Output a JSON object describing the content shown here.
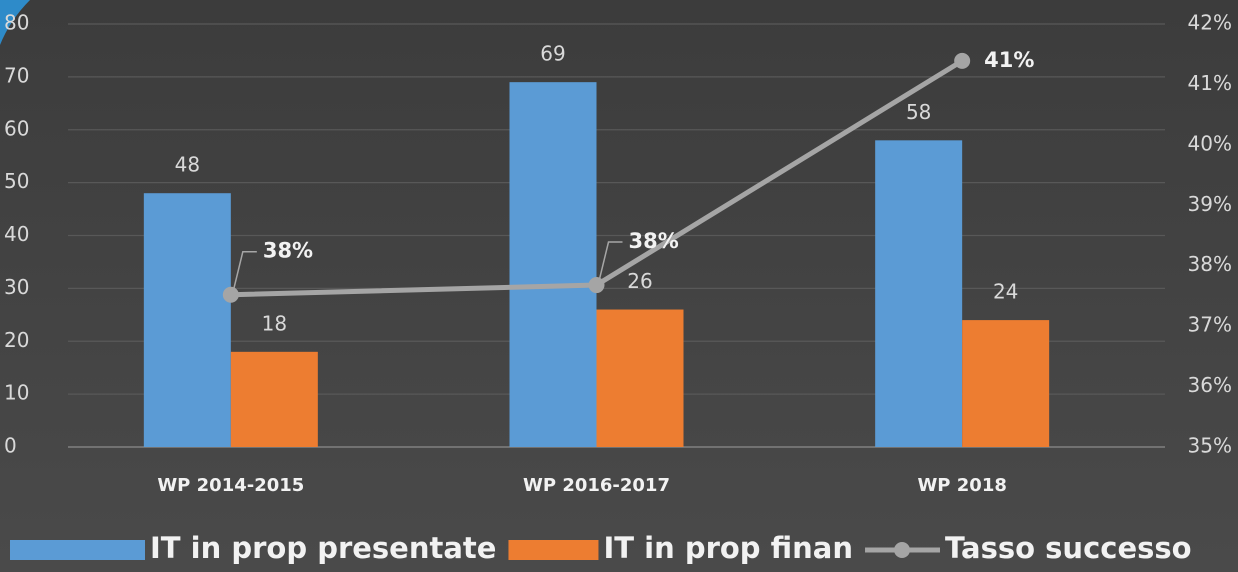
{
  "chart_data": {
    "type": "bar",
    "categories": [
      "WP 2014-2015",
      "WP 2016-2017",
      "WP 2018"
    ],
    "series": [
      {
        "name": "IT in prop presentate",
        "color": "#5b9bd5",
        "type": "bar",
        "values": [
          48,
          69,
          58
        ]
      },
      {
        "name": "IT in prop finan",
        "color": "#ed7d31",
        "type": "bar",
        "values": [
          18,
          26,
          24
        ]
      },
      {
        "name": "Tasso successo",
        "color": "#a5a5a5",
        "type": "line",
        "axis": "y2",
        "values": [
          37.52,
          37.68,
          41.39
        ],
        "value_labels": [
          "38%",
          "38%",
          "41%"
        ]
      }
    ],
    "ylim": [
      0,
      80
    ],
    "yticks": [
      0,
      10,
      20,
      30,
      40,
      50,
      60,
      70,
      80
    ],
    "y2lim": [
      35,
      42
    ],
    "y2ticks": [
      {
        "value": 35,
        "label": "35%"
      },
      {
        "value": 36,
        "label": "36%"
      },
      {
        "value": 37,
        "label": "37%"
      },
      {
        "value": 38,
        "label": "38%"
      },
      {
        "value": 39,
        "label": "39%"
      },
      {
        "value": 40,
        "label": "40%"
      },
      {
        "value": 41,
        "label": "41%"
      },
      {
        "value": 42,
        "label": "42%"
      }
    ],
    "grid": true,
    "legend": "bottom"
  }
}
